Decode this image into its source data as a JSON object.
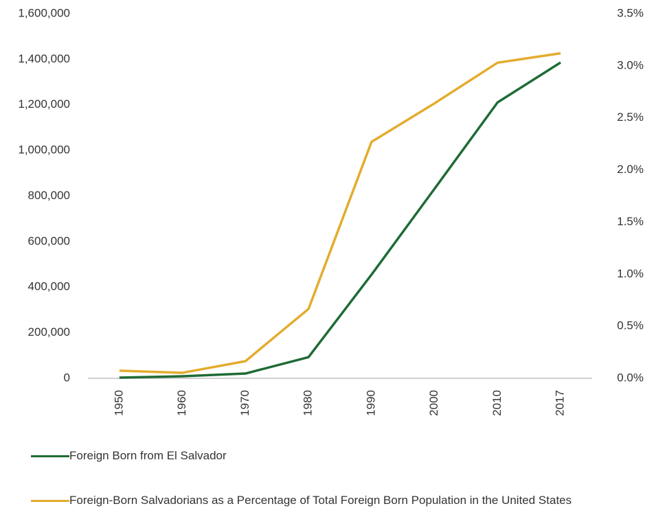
{
  "chart_data": {
    "type": "line",
    "categories": [
      "1950",
      "1960",
      "1970",
      "1980",
      "1990",
      "2000",
      "2010",
      "2017"
    ],
    "series": [
      {
        "name": "Foreign Born from El Salvador",
        "color": "#1e6b35",
        "values": [
          3000,
          9000,
          21000,
          93000,
          455000,
          832000,
          1211000,
          1386000
        ]
      },
      {
        "name": "Foreign-Born Salvadorians as a Percentage of Total Foreign Born Population in the United States",
        "color": "#e3ac2d",
        "axis": "y2",
        "values": [
          0.073,
          0.053,
          0.165,
          0.666,
          2.27,
          2.64,
          3.03,
          3.12
        ]
      }
    ],
    "ylim": [
      0,
      1600000
    ],
    "yticks": [
      0,
      {
        "value": 200000,
        "label": "200,000"
      },
      {
        "value": 400000,
        "label": "400,000"
      },
      {
        "value": 600000,
        "label": "600,000"
      },
      {
        "value": 800000,
        "label": "800,000"
      },
      {
        "value": 1000000,
        "label": "1,000,000"
      },
      {
        "value": 1200000,
        "label": "1,200,000"
      },
      {
        "value": 1400000,
        "label": "1,400,000"
      },
      {
        "value": 1600000,
        "label": "1,600,000"
      }
    ],
    "y2lim": [
      0,
      3.5
    ],
    "y2ticks": [
      {
        "value": 0,
        "label": "0.0%"
      },
      {
        "value": 0.5,
        "label": "0.5%"
      },
      {
        "value": 1,
        "label": "1.0%"
      },
      {
        "value": 1.5,
        "label": "1.5%"
      },
      {
        "value": 2,
        "label": "2.0%"
      },
      {
        "value": 2.5,
        "label": "2.5%"
      },
      {
        "value": 3,
        "label": "3.0%"
      },
      {
        "value": 3.5,
        "label": "3.5%"
      }
    ],
    "grid": false,
    "legend": "bottom"
  }
}
